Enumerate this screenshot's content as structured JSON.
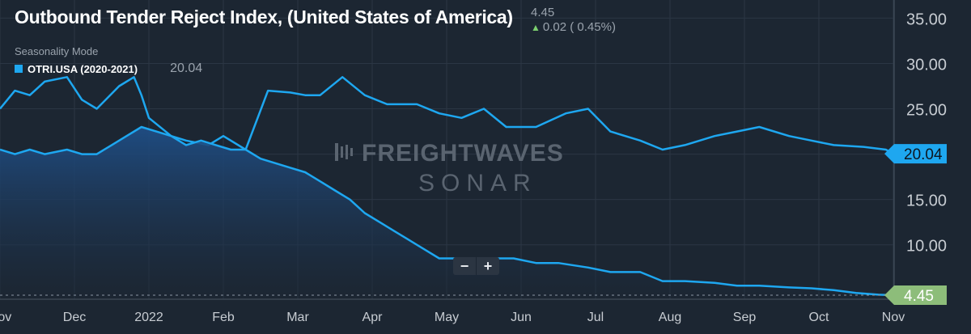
{
  "header": {
    "title": "Outbound Tender Reject Index, (United States of America)",
    "last_value": "4.45",
    "change": "0.02 ( 0.45%)",
    "mode": "Seasonality Mode",
    "legend_label": "OTRI.USA (2020-2021)",
    "legend_value": "20.04"
  },
  "watermark": {
    "line1": "FREIGHTWAVES",
    "line2": "SONAR"
  },
  "colors": {
    "background": "#1c2632",
    "line": "#1ea7f0",
    "current_tag": "#8dbd7a",
    "positive": "#7ccf6f"
  },
  "chart_data": {
    "type": "area",
    "title": "Outbound Tender Reject Index, (United States of America)",
    "x_tick_labels": [
      "Nov",
      "Dec",
      "2022",
      "Feb",
      "Mar",
      "Apr",
      "May",
      "Jun",
      "Jul",
      "Aug",
      "Sep",
      "Oct",
      "Nov"
    ],
    "y_ticks": [
      "10.00",
      "15.00",
      "20.00",
      "25.00",
      "30.00",
      "35.00"
    ],
    "ylim": [
      4,
      37
    ],
    "grid": true,
    "current_value_labels": [
      "20.04",
      "4.45"
    ],
    "series": [
      {
        "name": "OTRI.USA (2020-2021)",
        "style": "line",
        "x": [
          0,
          0.2,
          0.4,
          0.6,
          0.9,
          1.1,
          1.3,
          1.6,
          1.8,
          1.9,
          2.0,
          2.3,
          2.5,
          2.8,
          3.0,
          3.3,
          3.6,
          3.9,
          4.1,
          4.3,
          4.6,
          4.9,
          5.2,
          5.6,
          5.9,
          6.2,
          6.5,
          6.8,
          7.2,
          7.6,
          7.9,
          8.2,
          8.6,
          8.9,
          9.2,
          9.6,
          9.9,
          10.2,
          10.6,
          10.9,
          11.2,
          11.6,
          11.9,
          12.0
        ],
        "y": [
          25.0,
          27.0,
          26.5,
          28.0,
          28.5,
          26.0,
          25.0,
          27.5,
          28.5,
          26.5,
          24.0,
          22.0,
          21.5,
          21.0,
          22.0,
          20.5,
          27.0,
          26.8,
          26.5,
          26.5,
          28.5,
          26.5,
          25.5,
          25.5,
          24.5,
          24.0,
          25.0,
          23.0,
          23.0,
          24.5,
          25.0,
          22.5,
          21.5,
          20.5,
          21.0,
          22.0,
          22.5,
          23.0,
          22.0,
          21.5,
          21.0,
          20.8,
          20.5,
          20.04
        ]
      },
      {
        "name": "OTRI.USA",
        "style": "area",
        "x": [
          0,
          0.2,
          0.4,
          0.6,
          0.9,
          1.1,
          1.3,
          1.5,
          1.7,
          1.9,
          2.1,
          2.3,
          2.5,
          2.7,
          2.9,
          3.1,
          3.3,
          3.5,
          3.7,
          3.9,
          4.1,
          4.3,
          4.5,
          4.7,
          4.9,
          5.1,
          5.3,
          5.5,
          5.7,
          5.9,
          6.1,
          6.3,
          6.6,
          6.9,
          7.2,
          7.5,
          7.9,
          8.2,
          8.6,
          8.9,
          9.2,
          9.6,
          9.9,
          10.2,
          10.6,
          10.9,
          11.2,
          11.5,
          11.8,
          12.0
        ],
        "y": [
          20.5,
          20.0,
          20.5,
          20.0,
          20.5,
          20.0,
          20.0,
          21.0,
          22.0,
          23.0,
          22.5,
          22.0,
          21.0,
          21.5,
          21.0,
          20.5,
          20.5,
          19.5,
          19.0,
          18.5,
          18.0,
          17.0,
          16.0,
          15.0,
          13.5,
          12.5,
          11.5,
          10.5,
          9.5,
          8.5,
          8.5,
          8.5,
          8.5,
          8.5,
          8.0,
          8.0,
          7.5,
          7.0,
          7.0,
          6.0,
          6.0,
          5.8,
          5.5,
          5.5,
          5.3,
          5.2,
          5.0,
          4.7,
          4.5,
          4.45
        ]
      }
    ]
  }
}
